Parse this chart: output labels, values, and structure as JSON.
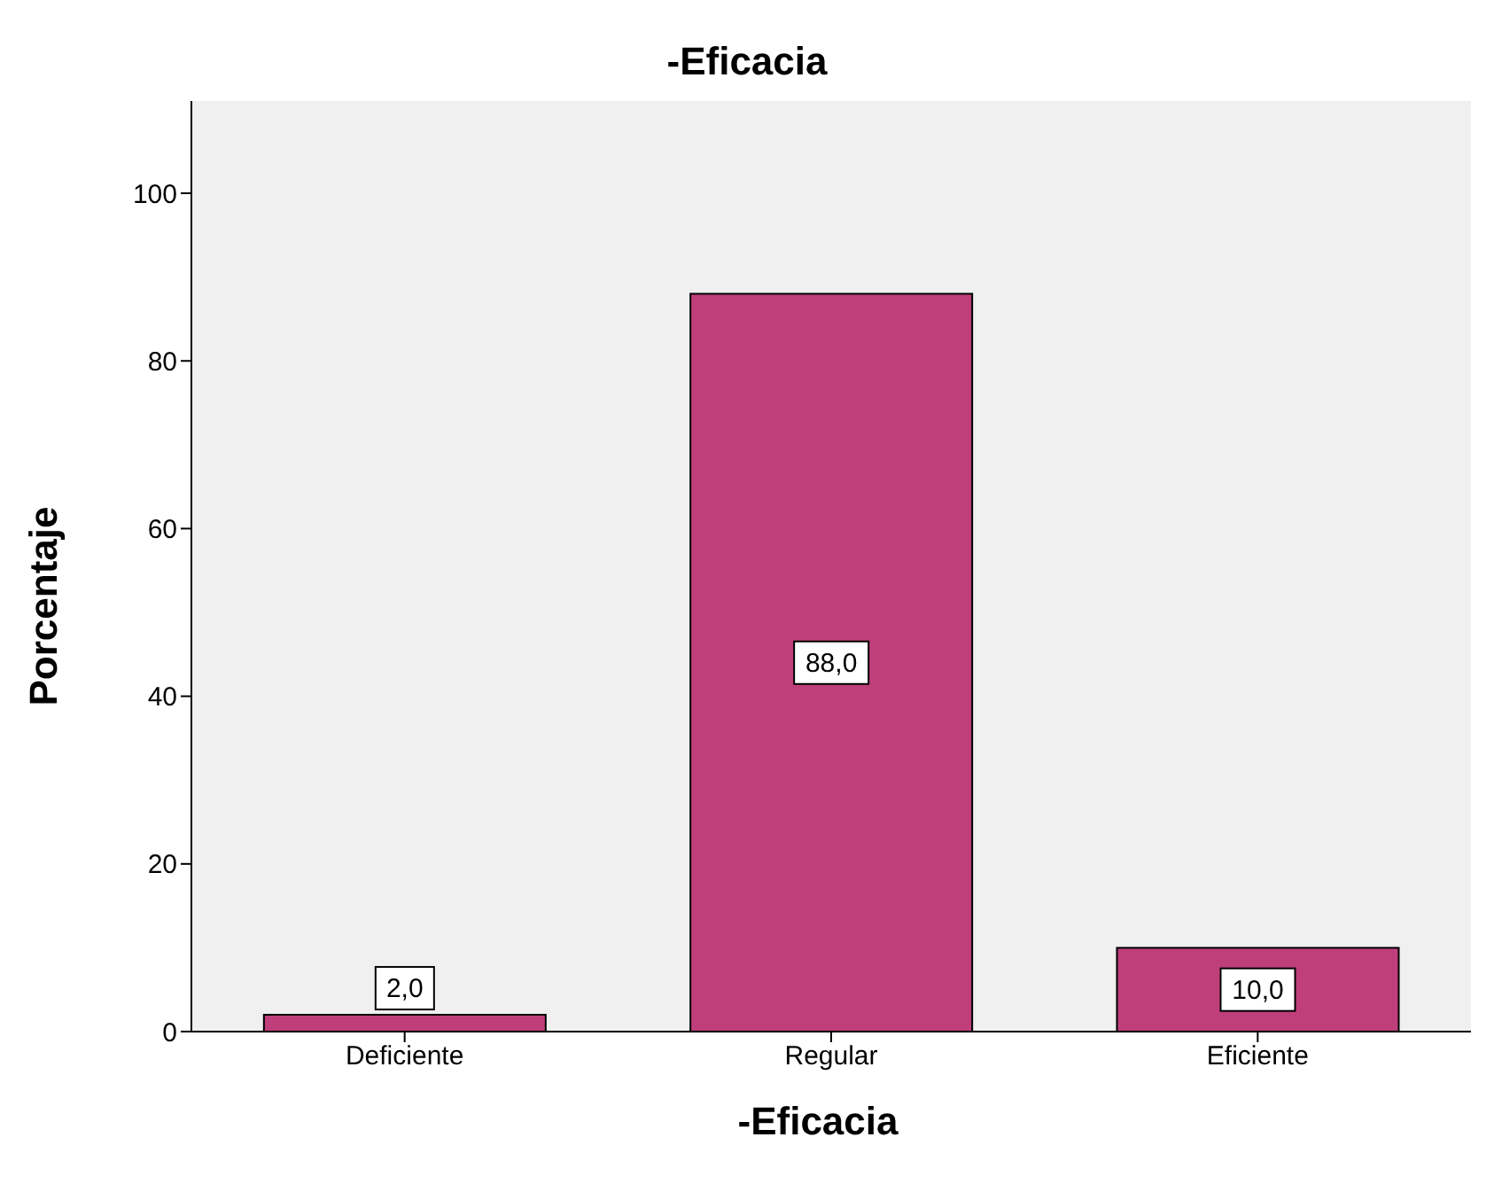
{
  "chart_data": {
    "type": "bar",
    "title": "-Eficacia",
    "xlabel": "-Eficacia",
    "ylabel": "Porcentaje",
    "categories": [
      "Deficiente",
      "Regular",
      "Eficiente"
    ],
    "values": [
      2.0,
      88.0,
      10.0
    ],
    "value_labels": [
      "2,0",
      "88,0",
      "10,0"
    ],
    "color": "#bf3f7b",
    "ylim": [
      0,
      111
    ],
    "yticks": [
      0,
      20,
      40,
      60,
      80,
      100
    ],
    "grid": false,
    "legend": false
  }
}
